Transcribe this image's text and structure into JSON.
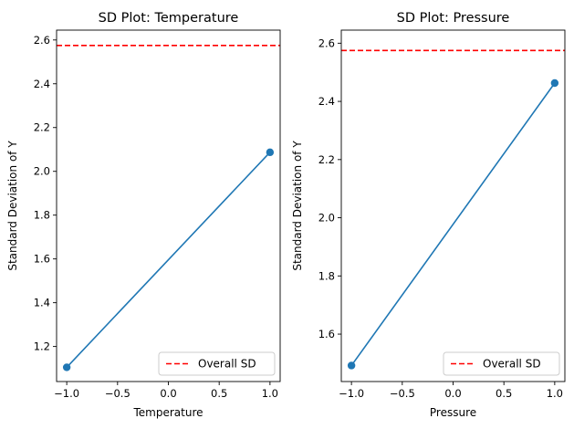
{
  "chart_data": [
    {
      "type": "line",
      "title": "SD Plot: Temperature",
      "xlabel": "Temperature",
      "ylabel": "Standard Deviation of Y",
      "xlim": [
        -1.1,
        1.1
      ],
      "ylim": [
        1.04,
        2.645
      ],
      "xticks": [
        -1.0,
        -0.5,
        0.0,
        0.5,
        1.0
      ],
      "xtick_labels": [
        "−1.0",
        "−0.5",
        "0.0",
        "0.5",
        "1.0"
      ],
      "yticks": [
        1.2,
        1.4,
        1.6,
        1.8,
        2.0,
        2.2,
        2.4,
        2.6
      ],
      "ytick_labels": [
        "1.2",
        "1.4",
        "1.6",
        "1.8",
        "2.0",
        "2.2",
        "2.4",
        "2.6"
      ],
      "x": [
        -1.0,
        1.0
      ],
      "y": [
        1.105,
        2.087
      ],
      "series_color": "#1f77b4",
      "reference_line": {
        "label": "Overall SD",
        "y": 2.575,
        "color": "#ff0000",
        "style": "dashed"
      },
      "legend": {
        "position": "lower-right",
        "entries": [
          "Overall SD"
        ]
      },
      "grid": false
    },
    {
      "type": "line",
      "title": "SD Plot: Pressure",
      "xlabel": "Pressure",
      "ylabel": "Standard Deviation of Y",
      "xlim": [
        -1.1,
        1.1
      ],
      "ylim": [
        1.437,
        2.645
      ],
      "xticks": [
        -1.0,
        -0.5,
        0.0,
        0.5,
        1.0
      ],
      "xtick_labels": [
        "−1.0",
        "−0.5",
        "0.0",
        "0.5",
        "1.0"
      ],
      "yticks": [
        1.6,
        1.8,
        2.0,
        2.2,
        2.4,
        2.6
      ],
      "ytick_labels": [
        "1.6",
        "1.8",
        "2.0",
        "2.2",
        "2.4",
        "2.6"
      ],
      "x": [
        -1.0,
        1.0
      ],
      "y": [
        1.492,
        2.463
      ],
      "series_color": "#1f77b4",
      "reference_line": {
        "label": "Overall SD",
        "y": 2.575,
        "color": "#ff0000",
        "style": "dashed"
      },
      "legend": {
        "position": "lower-right",
        "entries": [
          "Overall SD"
        ]
      },
      "grid": false
    }
  ]
}
